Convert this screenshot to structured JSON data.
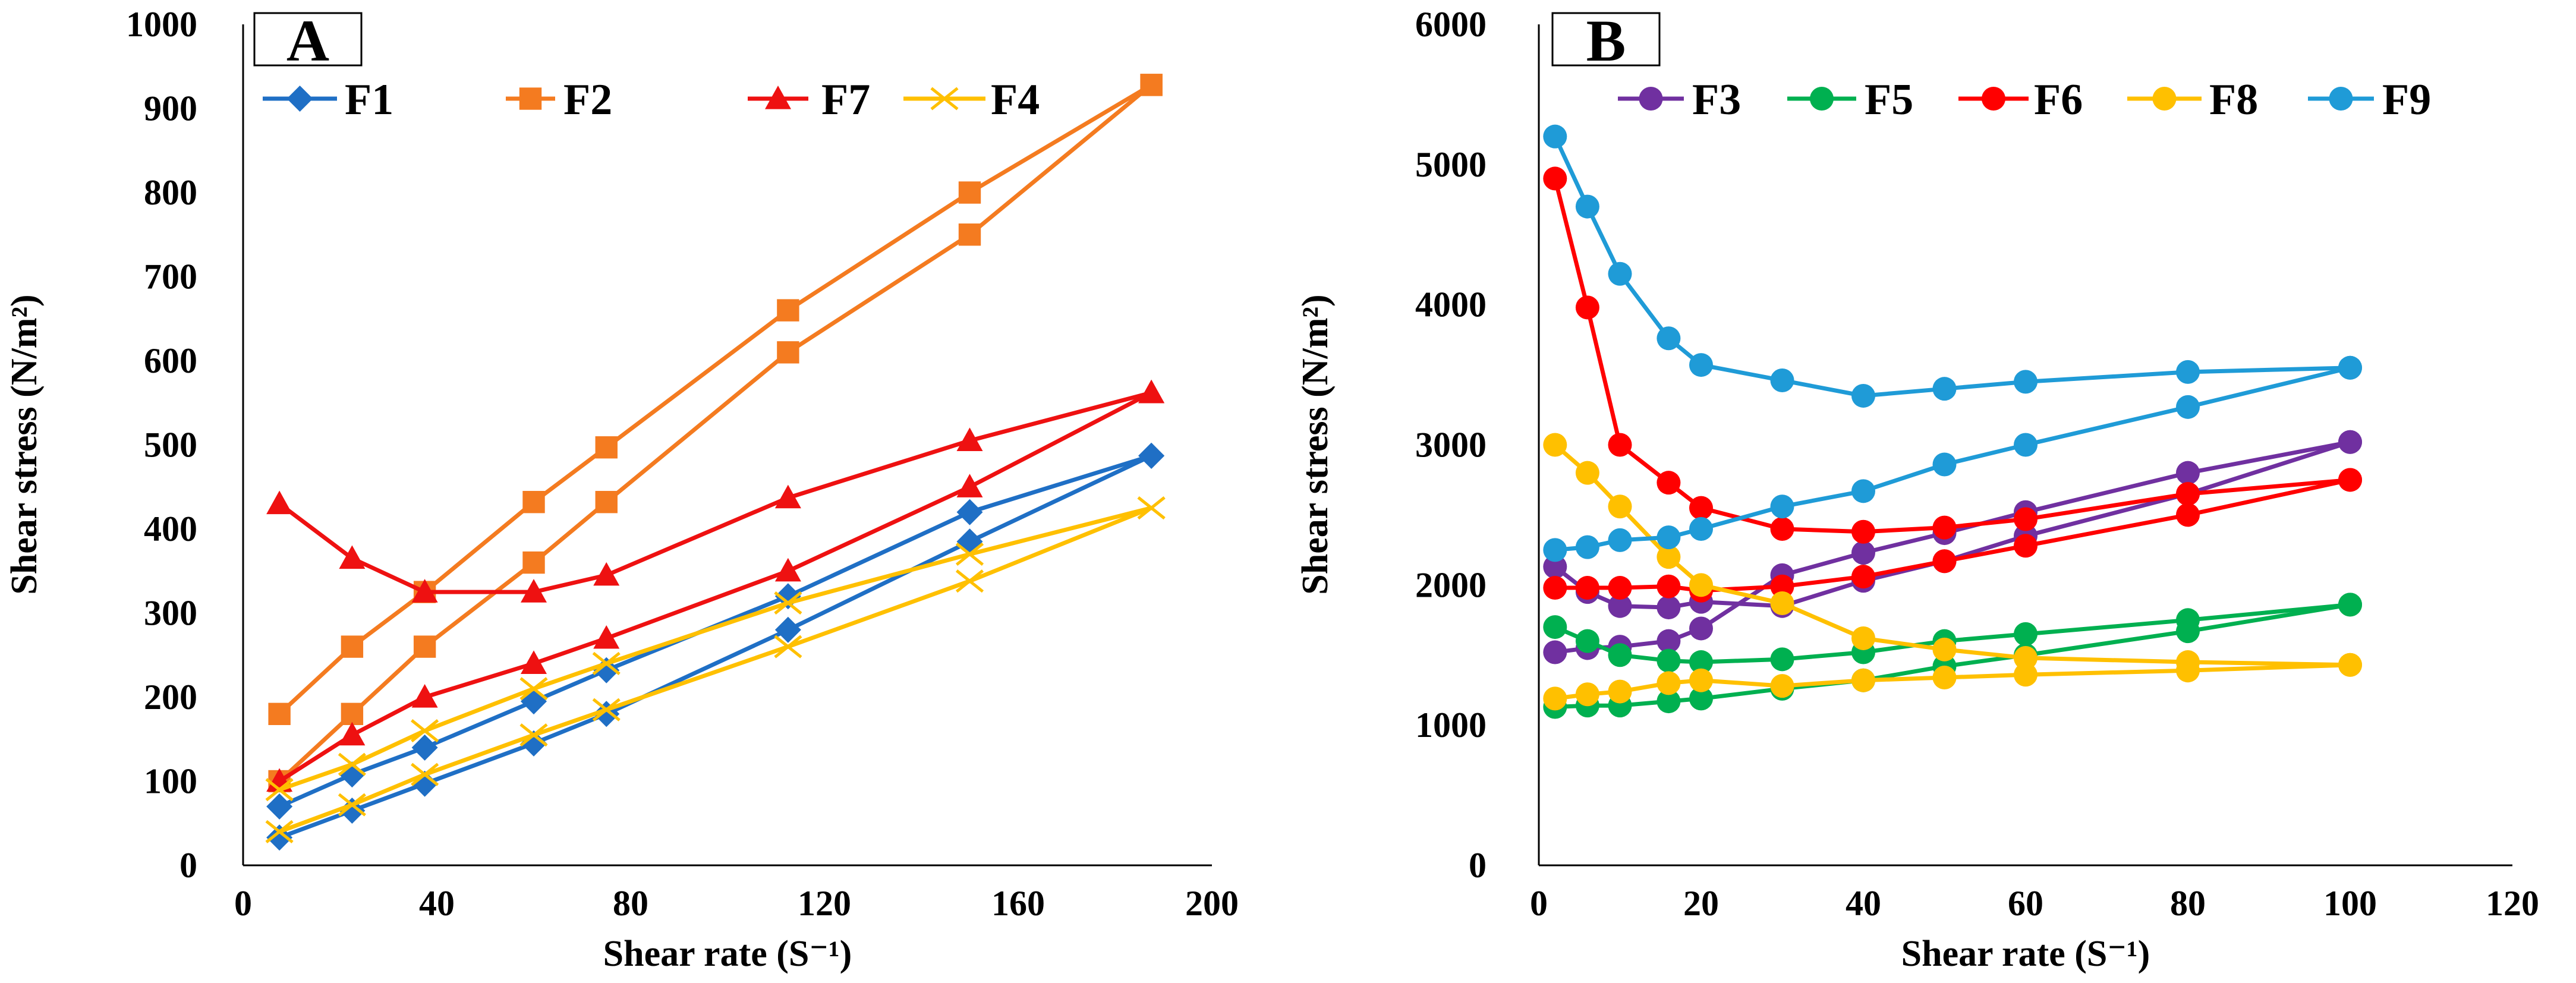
{
  "chart_data": [
    {
      "panel": "A",
      "type": "line",
      "xlabel": "Shear rate (S⁻¹)",
      "ylabel": "Shear stress (N/m²)",
      "xlim": [
        0,
        200
      ],
      "ylim": [
        0,
        1000
      ],
      "xticks": [
        0,
        40,
        80,
        120,
        160,
        200
      ],
      "yticks": [
        0,
        100,
        200,
        300,
        400,
        500,
        600,
        700,
        800,
        900,
        1000
      ],
      "grid": false,
      "legend_position": "top",
      "x": [
        7.5,
        22.5,
        37.5,
        60,
        75,
        112.5,
        150,
        187.5
      ],
      "series": [
        {
          "name": "F1",
          "color": "#1f6fc5",
          "marker": "diamond",
          "branches": [
            [
              70,
              108,
              140,
              195,
              232,
              320,
              420,
              487
            ],
            [
              33,
              65,
              97,
              145,
              180,
              280,
              385,
              487
            ]
          ]
        },
        {
          "name": "F2",
          "color": "#f47b20",
          "marker": "square",
          "branches": [
            [
              180,
              260,
              325,
              432,
              497,
              660,
              800,
              928
            ],
            [
              100,
              180,
              260,
              360,
              432,
              610,
              750,
              928
            ]
          ]
        },
        {
          "name": "F7",
          "color": "#ee1111",
          "marker": "triangle",
          "branches": [
            [
              430,
              365,
              325,
              325,
              345,
              437,
              505,
              562
            ],
            [
              100,
              155,
              200,
              240,
              270,
              350,
              450,
              562
            ]
          ]
        },
        {
          "name": "F4",
          "color": "#ffc000",
          "marker": "x",
          "branches": [
            [
              90,
              120,
              160,
              210,
              240,
              312,
              370,
              425
            ],
            [
              40,
              72,
              108,
              155,
              185,
              260,
              338,
              425
            ]
          ]
        }
      ]
    },
    {
      "panel": "B",
      "type": "line",
      "xlabel": "Shear rate (S⁻¹)",
      "ylabel": "Shear stress (N/m²)",
      "xlim": [
        0,
        120
      ],
      "ylim": [
        0,
        6000
      ],
      "xticks": [
        0,
        20,
        40,
        60,
        80,
        100,
        120
      ],
      "yticks": [
        0,
        1000,
        2000,
        3000,
        4000,
        5000,
        6000
      ],
      "grid": false,
      "legend_position": "top",
      "x": [
        2,
        6,
        10,
        16,
        20,
        30,
        40,
        50,
        60,
        80,
        100
      ],
      "series": [
        {
          "name": "F3",
          "color": "#7030a0",
          "marker": "circle",
          "branches": [
            [
              2130,
              1950,
              1850,
              1840,
              1880,
              1850,
              2030,
              2170,
              2350,
              2650,
              3020
            ],
            [
              1520,
              1550,
              1560,
              1600,
              1690,
              2070,
              2230,
              2370,
              2520,
              2800,
              3020
            ]
          ]
        },
        {
          "name": "F5",
          "color": "#00b050",
          "marker": "circle",
          "branches": [
            [
              1700,
              1600,
              1500,
              1460,
              1450,
              1470,
              1520,
              1600,
              1650,
              1750,
              1860
            ],
            [
              1130,
              1140,
              1140,
              1170,
              1190,
              1260,
              1320,
              1420,
              1500,
              1670,
              1860
            ]
          ]
        },
        {
          "name": "F6",
          "color": "#ff0000",
          "marker": "circle",
          "branches": [
            [
              4900,
              3980,
              3000,
              2730,
              2550,
              2400,
              2380,
              2410,
              2470,
              2650,
              2750
            ],
            [
              1980,
              1980,
              1980,
              1990,
              1960,
              1990,
              2060,
              2170,
              2280,
              2500,
              2750
            ]
          ]
        },
        {
          "name": "F8",
          "color": "#ffc000",
          "marker": "circle",
          "branches": [
            [
              3000,
              2800,
              2560,
              2200,
              2000,
              1870,
              1620,
              1540,
              1480,
              1450,
              1430
            ],
            [
              1190,
              1220,
              1240,
              1300,
              1320,
              1280,
              1320,
              1340,
              1360,
              1390,
              1430
            ]
          ]
        },
        {
          "name": "F9",
          "color": "#1f9bd7",
          "marker": "circle",
          "branches": [
            [
              5200,
              4700,
              4220,
              3760,
              3570,
              3460,
              3350,
              3400,
              3450,
              3520,
              3550
            ],
            [
              2250,
              2270,
              2320,
              2340,
              2400,
              2560,
              2670,
              2860,
              3000,
              3270,
              3550
            ]
          ]
        }
      ]
    }
  ]
}
